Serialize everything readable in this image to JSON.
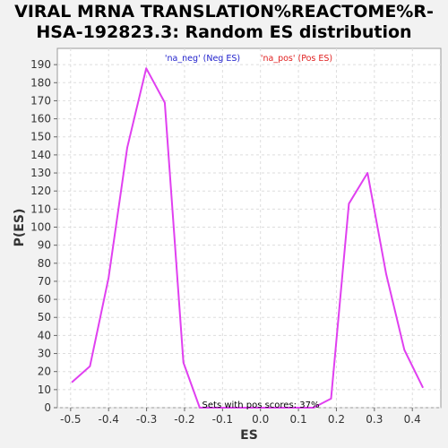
{
  "chart_data": {
    "type": "line",
    "title_lines": [
      "VIRAL MRNA TRANSLATION%REACTOME%R-",
      "HSA-192823.3: Random ES distribution"
    ],
    "xlabel": "ES",
    "ylabel": "P(ES)",
    "xlim": [
      -0.535,
      0.475
    ],
    "ylim": [
      0,
      199
    ],
    "xticks": [
      -0.5,
      -0.4,
      -0.3,
      -0.2,
      -0.1,
      0.0,
      0.1,
      0.2,
      0.3,
      0.4
    ],
    "xtick_labels": [
      "-0.5",
      "-0.4",
      "-0.3",
      "-0.2",
      "-0.1",
      "0.0",
      "0.1",
      "0.2",
      "0.3",
      "0.4"
    ],
    "yticks": [
      0,
      10,
      20,
      30,
      40,
      50,
      60,
      70,
      80,
      90,
      100,
      110,
      120,
      130,
      140,
      150,
      160,
      170,
      180,
      190
    ],
    "ytick_labels": [
      "0",
      "10",
      "20",
      "30",
      "40",
      "50",
      "60",
      "70",
      "80",
      "90",
      "100",
      "110",
      "120",
      "130",
      "140",
      "150",
      "160",
      "170",
      "180",
      "190"
    ],
    "grid": true,
    "legend": [
      {
        "label": "'na_neg' (Neg ES)",
        "color": "#2222cc"
      },
      {
        "label": "'na_pos' (Pos ES)",
        "color": "#e02020"
      }
    ],
    "annotation": "Sets with pos scores: 37%",
    "series": [
      {
        "color": "#e040f0",
        "x": [
          -0.497,
          -0.449,
          -0.4,
          -0.351,
          -0.301,
          -0.252,
          -0.203,
          -0.16,
          0.14,
          0.186,
          0.233,
          0.282,
          0.331,
          0.379,
          0.428
        ],
        "y": [
          14,
          23,
          72,
          144,
          188,
          169,
          25,
          0,
          0,
          5,
          113,
          130,
          74,
          32,
          11
        ]
      }
    ]
  }
}
